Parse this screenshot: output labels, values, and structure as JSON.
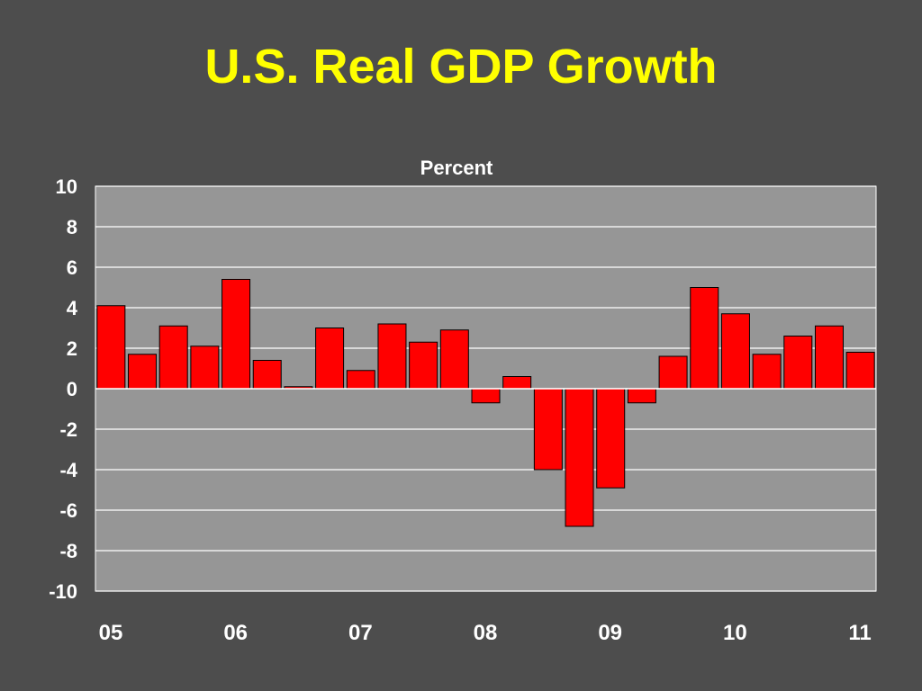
{
  "slide": {
    "title": "U.S. Real GDP Growth"
  },
  "chart_data": {
    "type": "bar",
    "title": "U.S. Real GDP Growth",
    "ylabel": "Percent",
    "xlabel": "",
    "ylim": [
      -10,
      10
    ],
    "y_ticks": [
      "10",
      "8",
      "6",
      "4",
      "2",
      "0",
      "-2",
      "-4",
      "-6",
      "-8",
      "-10"
    ],
    "x_tick_labels": [
      "05",
      "06",
      "07",
      "08",
      "09",
      "10",
      "11"
    ],
    "grid": true,
    "categories": [
      "05Q1",
      "05Q2",
      "05Q3",
      "05Q4",
      "06Q1",
      "06Q2",
      "06Q3",
      "06Q4",
      "07Q1",
      "07Q2",
      "07Q3",
      "07Q4",
      "08Q1",
      "08Q2",
      "08Q3",
      "08Q4",
      "09Q1",
      "09Q2",
      "09Q3",
      "09Q4",
      "10Q1",
      "10Q2",
      "10Q3",
      "10Q4",
      "11Q1"
    ],
    "values": [
      4.1,
      1.7,
      3.1,
      2.1,
      5.4,
      1.4,
      0.1,
      3.0,
      0.9,
      3.2,
      2.3,
      2.9,
      -0.7,
      0.6,
      -4.0,
      -6.8,
      -4.9,
      -0.7,
      1.6,
      5.0,
      3.7,
      1.7,
      2.6,
      3.1,
      1.8
    ],
    "colors": {
      "bar": "#ff0000",
      "plot_background": "#969696",
      "gridline": "#ffffff",
      "title": "#ffff00",
      "text": "#ffffff"
    }
  }
}
